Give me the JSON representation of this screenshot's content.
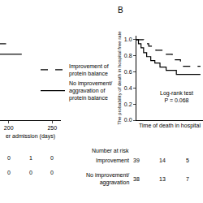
{
  "chart_data": [
    {
      "type": "line",
      "x_label": "er admission (days)",
      "xlim": [
        190,
        260
      ],
      "xticks": [
        200,
        250
      ],
      "ylim": [
        0,
        1.05
      ],
      "tick_labels": "x",
      "legend": "center",
      "series": [
        {
          "name": "Improvement of protein balance",
          "color": "#000000",
          "line_style": "dashed",
          "x": [
            190,
            197
          ],
          "values": [
            0.95,
            0.95
          ]
        },
        {
          "name": "No improvement/ aggravation of protein balance",
          "color": "#000000",
          "line_style": "solid",
          "x": [
            190,
            215
          ],
          "values": [
            0.82,
            0.82
          ]
        }
      ],
      "at_risk": {
        "x": [
          200,
          225,
          250
        ],
        "rows": [
          {
            "values": [
              0,
              1,
              0
            ]
          },
          {
            "values": [
              0,
              0,
              0
            ]
          }
        ]
      }
    },
    {
      "type": "line",
      "title": "B",
      "x_label": "Time of death in hospital",
      "y_label": "The probability of death in hospital free rate",
      "xlim": [
        0,
        130
      ],
      "ylim": [
        0,
        1.05
      ],
      "yticks": [
        {
          "value": 0,
          "label": "0.0"
        },
        {
          "value": 0.2,
          "label": "0.2"
        },
        {
          "value": 0.4,
          "label": "0.4"
        },
        {
          "value": 0.6,
          "label": "0.6"
        },
        {
          "value": 0.8,
          "label": "0.8"
        },
        {
          "value": 1,
          "label": "1.0"
        }
      ],
      "tick_labels": "y",
      "annotations": [
        "Log-rank test",
        "P = 0.068"
      ],
      "series": [
        {
          "color": "#000000",
          "line_style": "dashed",
          "x": [
            0,
            14,
            24,
            38,
            52,
            70,
            86,
            125
          ],
          "values": [
            1,
            0.95,
            0.92,
            0.87,
            0.82,
            0.75,
            0.67,
            0.67
          ]
        },
        {
          "color": "#000000",
          "line_style": "solid",
          "x": [
            0,
            4,
            9,
            14,
            20,
            28,
            36,
            46,
            58,
            78,
            125
          ],
          "values": [
            1,
            0.95,
            0.9,
            0.84,
            0.79,
            0.74,
            0.71,
            0.66,
            0.62,
            0.57,
            0.57
          ]
        }
      ],
      "at_risk": {
        "title": "Number at risk",
        "x": [
          0,
          50,
          100
        ],
        "rows": [
          {
            "name": "Improvement",
            "values": [
              39,
              14,
              5
            ]
          },
          {
            "name": "No improvement/ aggravation",
            "values": [
              38,
              13,
              7
            ]
          }
        ]
      }
    }
  ]
}
